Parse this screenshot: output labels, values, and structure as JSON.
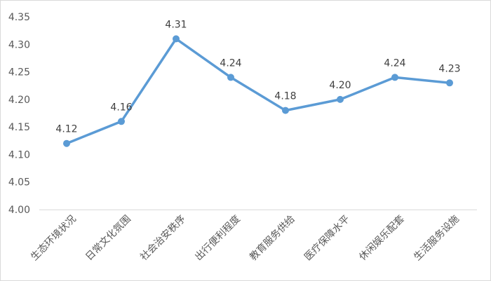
{
  "chart_data": {
    "type": "line",
    "title": "",
    "xlabel": "",
    "ylabel": "",
    "ylim": [
      4.0,
      4.35
    ],
    "y_ticks": [
      "4.00",
      "4.05",
      "4.10",
      "4.15",
      "4.20",
      "4.25",
      "4.30",
      "4.35"
    ],
    "grid": false,
    "legend": "none",
    "categories": [
      "生态环境状况",
      "日常文化氛围",
      "社会治安秩序",
      "出行便利程度",
      "教育服务供给",
      "医疗保障水平",
      "休闲娱乐配套",
      "生活服务设施"
    ],
    "series": [
      {
        "values": [
          4.12,
          4.16,
          4.31,
          4.24,
          4.18,
          4.2,
          4.24,
          4.23
        ],
        "data_labels": [
          "4.12",
          "4.16",
          "4.31",
          "4.24",
          "4.18",
          "4.20",
          "4.24",
          "4.23"
        ],
        "color": "#5b9bd5"
      }
    ]
  }
}
